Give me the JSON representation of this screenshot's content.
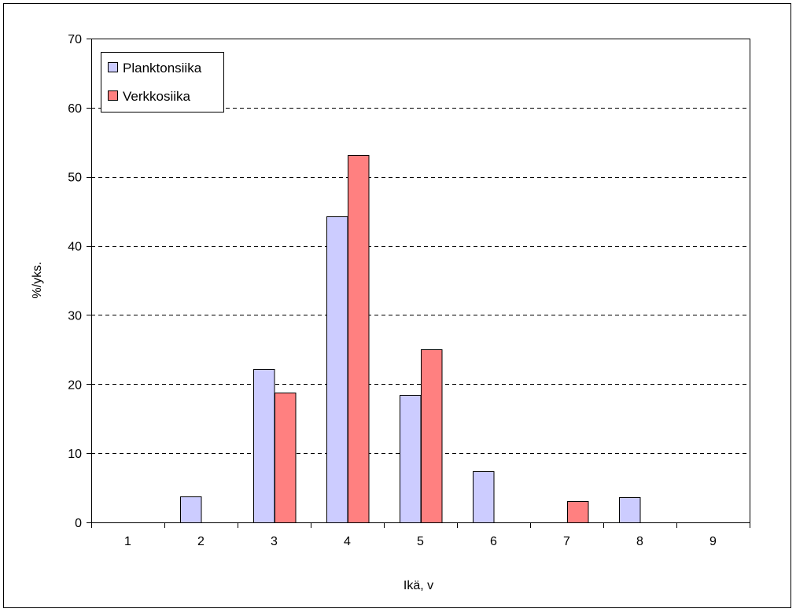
{
  "chart_data": {
    "type": "bar",
    "title": "",
    "xlabel": "Ikä, v",
    "ylabel": "%/yks.",
    "categories": [
      "1",
      "2",
      "3",
      "4",
      "5",
      "6",
      "7",
      "8",
      "9"
    ],
    "series": [
      {
        "name": "Planktonsiika",
        "color": "#ccccff",
        "values": [
          0,
          3.8,
          22.2,
          44.3,
          18.4,
          7.4,
          0,
          3.6,
          0
        ]
      },
      {
        "name": "Verkkosiika",
        "color": "#ff8080",
        "values": [
          0,
          0,
          18.8,
          53.1,
          25.0,
          0,
          3.1,
          0,
          0
        ]
      }
    ],
    "ylim": [
      0,
      70
    ],
    "yticks": [
      0,
      10,
      20,
      30,
      40,
      50,
      60,
      70
    ],
    "grid": "horizontal-dashed",
    "legend_position": "top-left"
  }
}
